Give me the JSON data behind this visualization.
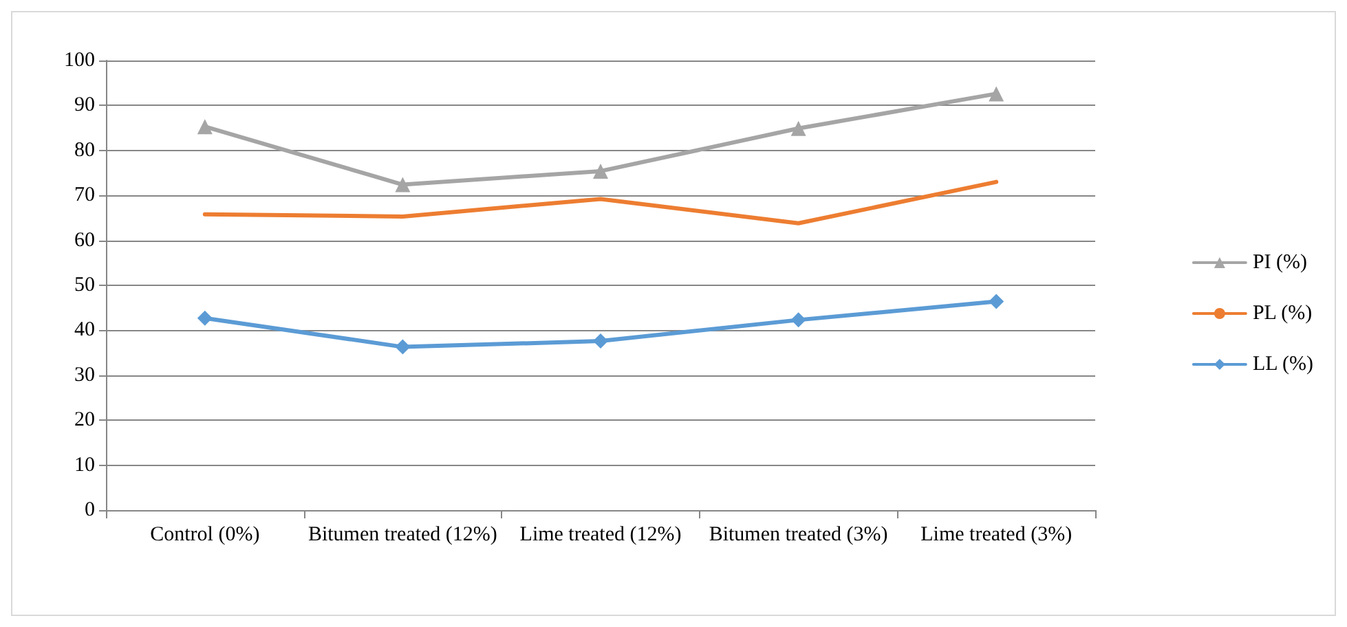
{
  "chart_data": {
    "type": "line",
    "categories": [
      "Control (0%)",
      "Bitumen treated (12%)",
      "Lime treated (12%)",
      "Bitumen treated (3%)",
      "Lime treated (3%)"
    ],
    "series": [
      {
        "name": "PI (%)",
        "color": "#a5a5a5",
        "marker": "triangle",
        "values": [
          85.3,
          72.4,
          75.4,
          84.9,
          92.6
        ]
      },
      {
        "name": "PL (%)",
        "color": "#ed7d31",
        "marker": "none",
        "values": [
          65.8,
          65.3,
          69.2,
          63.8,
          73.0
        ]
      },
      {
        "name": "LL (%)",
        "color": "#5b9bd5",
        "marker": "diamond",
        "values": [
          42.7,
          36.3,
          37.6,
          42.3,
          46.4
        ]
      }
    ],
    "ylim": [
      0,
      100
    ],
    "yticks": [
      0,
      10,
      20,
      30,
      40,
      50,
      60,
      70,
      80,
      90,
      100
    ],
    "grid": "y",
    "legend": "right",
    "line_style": "solid"
  }
}
